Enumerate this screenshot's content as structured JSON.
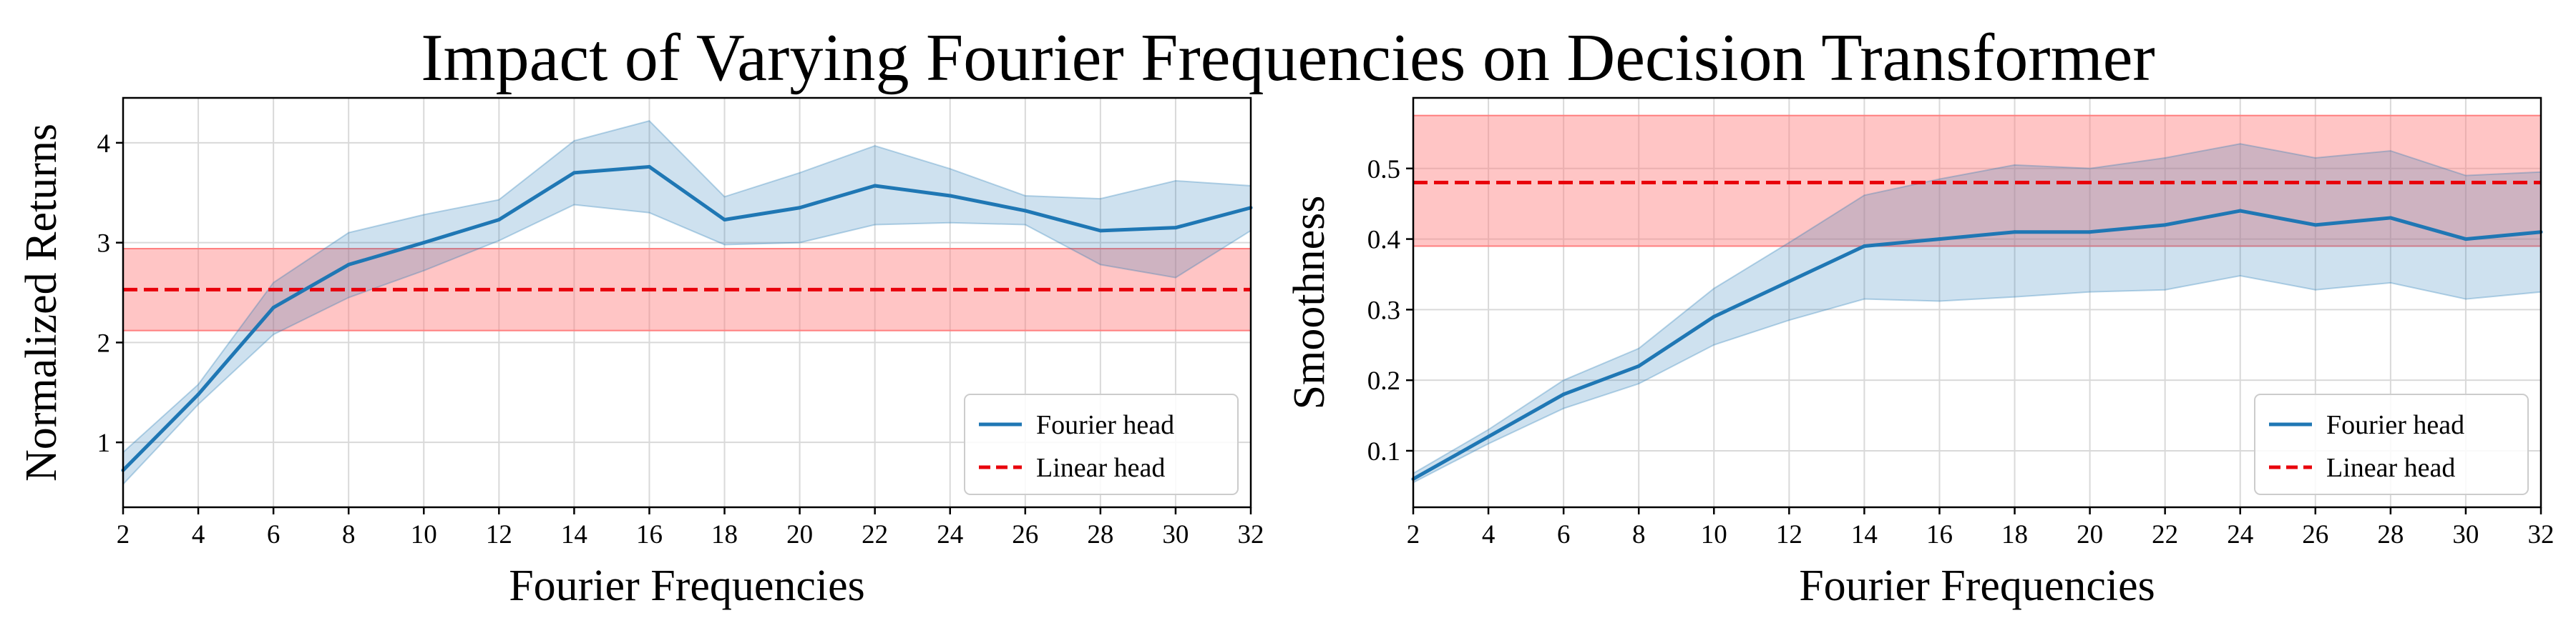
{
  "figure": {
    "title": "Impact of Varying Fourier Frequencies on Decision Transformer"
  },
  "colors": {
    "fourier": "#1f77b4",
    "fourier_band": "#1f77b4",
    "linear": "#e8000b",
    "linear_band": "#ff7f7f",
    "grid": "#d9d9d9",
    "axis": "#000000"
  },
  "chart_data": [
    {
      "type": "line",
      "title": "",
      "xlabel": "Fourier Frequencies",
      "ylabel": "Normalized Returns",
      "xlim": [
        2,
        32
      ],
      "ylim": [
        0.35,
        4.45
      ],
      "xticks": [
        "2",
        "4",
        "6",
        "8",
        "10",
        "12",
        "14",
        "16",
        "18",
        "20",
        "22",
        "24",
        "26",
        "28",
        "30",
        "32"
      ],
      "yticks": [
        "1",
        "2",
        "3",
        "4"
      ],
      "grid": true,
      "legend_position": "lower-right",
      "x": [
        2,
        4,
        6,
        8,
        10,
        12,
        14,
        16,
        18,
        20,
        22,
        24,
        26,
        28,
        30,
        32
      ],
      "series": [
        {
          "name": "Fourier head",
          "style": "solid",
          "values": [
            0.72,
            1.48,
            2.35,
            2.78,
            3.0,
            3.23,
            3.7,
            3.76,
            3.23,
            3.35,
            3.57,
            3.47,
            3.32,
            3.12,
            3.15,
            3.35
          ],
          "lower": [
            0.58,
            1.38,
            2.08,
            2.45,
            2.72,
            3.02,
            3.38,
            3.3,
            2.98,
            3.0,
            3.18,
            3.2,
            3.18,
            2.78,
            2.65,
            3.12
          ],
          "upper": [
            0.9,
            1.58,
            2.6,
            3.1,
            3.28,
            3.43,
            4.02,
            4.22,
            3.46,
            3.7,
            3.97,
            3.74,
            3.47,
            3.44,
            3.62,
            3.57
          ]
        },
        {
          "name": "Linear head",
          "style": "dashed",
          "values": [
            2.53,
            2.53
          ],
          "x": [
            2,
            32
          ],
          "lower": [
            2.12,
            2.12
          ],
          "upper": [
            2.94,
            2.94
          ]
        }
      ]
    },
    {
      "type": "line",
      "title": "",
      "xlabel": "Fourier Frequencies",
      "ylabel": "Smoothness",
      "xlim": [
        2,
        32
      ],
      "ylim": [
        0.02,
        0.6
      ],
      "xticks": [
        "2",
        "4",
        "6",
        "8",
        "10",
        "12",
        "14",
        "16",
        "18",
        "20",
        "22",
        "24",
        "26",
        "28",
        "30",
        "32"
      ],
      "yticks": [
        "0.1",
        "0.2",
        "0.3",
        "0.4",
        "0.5"
      ],
      "grid": true,
      "legend_position": "lower-right",
      "x": [
        2,
        4,
        6,
        8,
        10,
        12,
        14,
        16,
        18,
        20,
        22,
        24,
        26,
        28,
        30,
        32
      ],
      "series": [
        {
          "name": "Fourier head",
          "style": "solid",
          "values": [
            0.06,
            0.12,
            0.18,
            0.22,
            0.29,
            0.34,
            0.39,
            0.4,
            0.41,
            0.41,
            0.42,
            0.44,
            0.42,
            0.43,
            0.4,
            0.41
          ],
          "lower": [
            0.055,
            0.11,
            0.16,
            0.195,
            0.25,
            0.285,
            0.315,
            0.312,
            0.318,
            0.325,
            0.328,
            0.348,
            0.328,
            0.338,
            0.315,
            0.325
          ],
          "upper": [
            0.068,
            0.13,
            0.2,
            0.245,
            0.33,
            0.395,
            0.462,
            0.485,
            0.505,
            0.5,
            0.515,
            0.535,
            0.515,
            0.525,
            0.49,
            0.495
          ]
        },
        {
          "name": "Linear head",
          "style": "dashed",
          "values": [
            0.48,
            0.48
          ],
          "x": [
            2,
            32
          ],
          "lower": [
            0.39,
            0.39
          ],
          "upper": [
            0.575,
            0.575
          ]
        }
      ]
    }
  ]
}
